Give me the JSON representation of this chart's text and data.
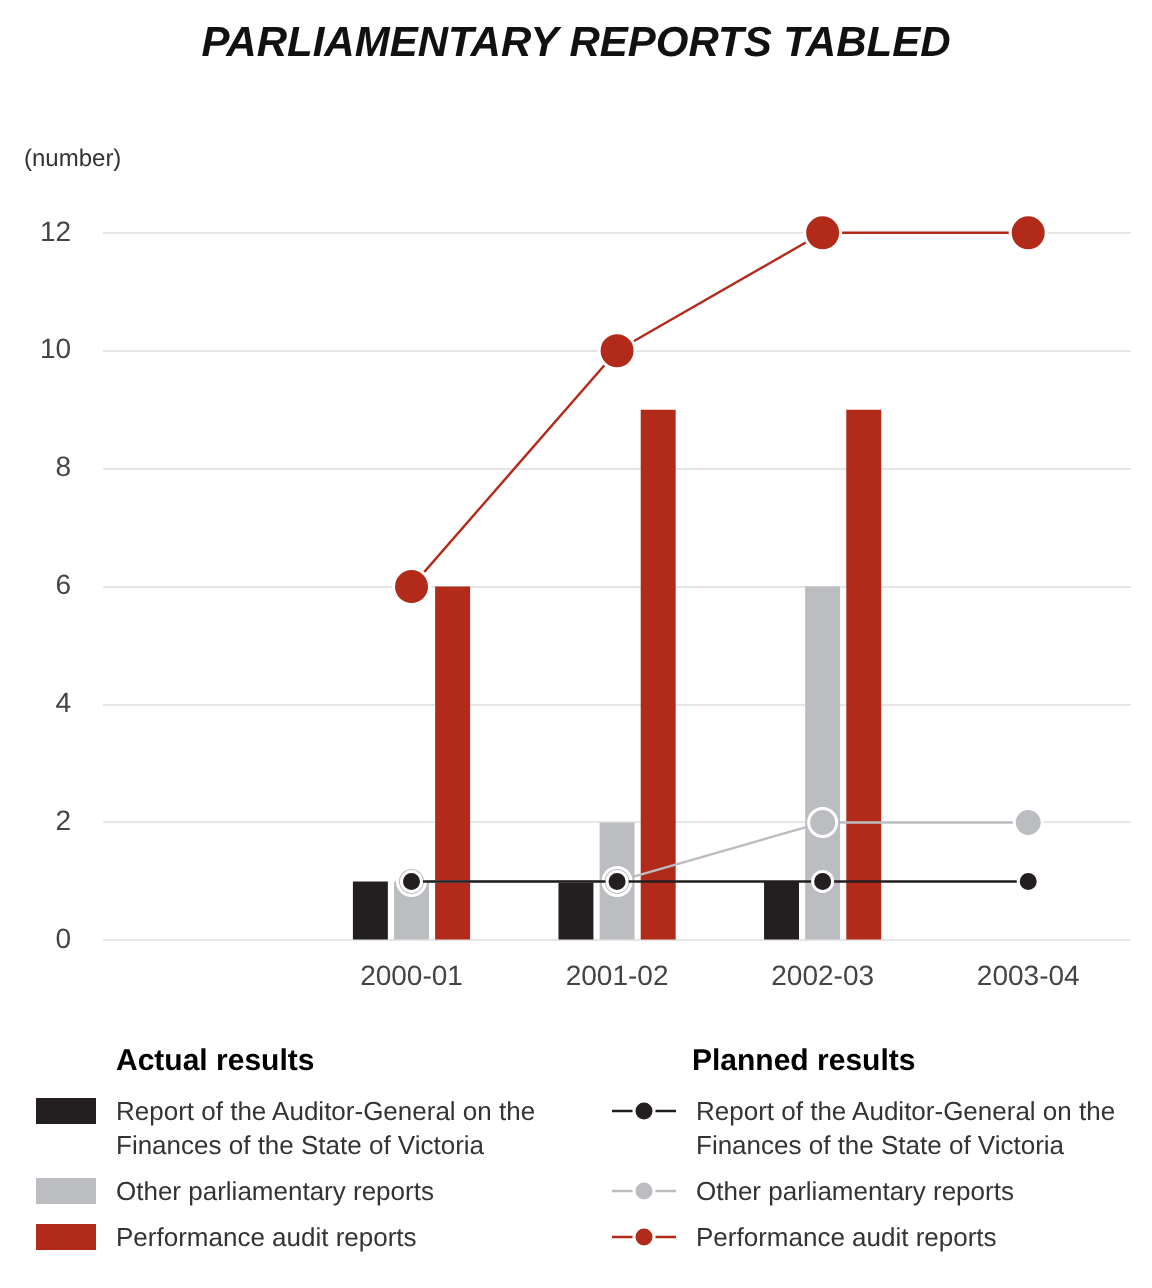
{
  "chart_data": {
    "type": "bar",
    "title": "PARLIAMENTARY REPORTS TABLED",
    "ylabel": "(number)",
    "categories": [
      null,
      "2000-01",
      "2001-02",
      "2002-03",
      "2003-04"
    ],
    "series": [
      {
        "name": "Report of the Auditor-General on the Finances of the State of Victoria",
        "color": "#231f20",
        "values": [
          null,
          1,
          1,
          1,
          null
        ]
      },
      {
        "name": "Other parliamentary reports",
        "color": "#bcbdc0",
        "values": [
          null,
          1,
          2,
          6,
          null
        ]
      },
      {
        "name": "Performance audit reports",
        "color": "#b22a1a",
        "values": [
          null,
          6,
          9,
          9,
          null
        ]
      },
      {
        "name": "Report of the Auditor-General on the Finances of the State of Victoria",
        "type": "line",
        "color": "#231f20",
        "values": [
          null,
          1,
          1,
          1,
          1
        ]
      },
      {
        "name": "Other parliamentary reports",
        "type": "line",
        "color": "#bcbdc0",
        "values": [
          null,
          1,
          1,
          2,
          2
        ]
      },
      {
        "name": "Performance audit reports",
        "type": "line",
        "color": "#b22a1a",
        "values": [
          null,
          6,
          10,
          12,
          12
        ]
      }
    ],
    "annotations": [
      "Actual results",
      "Planned results"
    ],
    "ylim": [
      0,
      12
    ],
    "yticks": [
      0,
      2,
      4,
      6,
      8,
      10,
      12
    ],
    "grid": "y",
    "marker": "circle",
    "line_style": "solid",
    "legend": "bottom"
  }
}
